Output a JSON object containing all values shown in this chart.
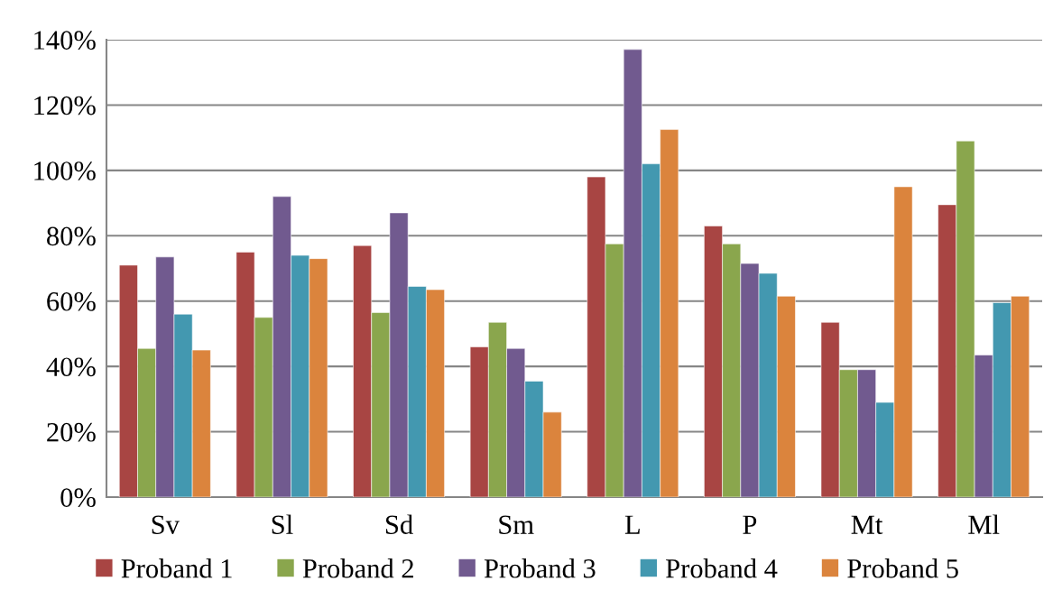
{
  "chart_data": {
    "type": "bar",
    "categories": [
      "Sv",
      "Sl",
      "Sd",
      "Sm",
      "L",
      "P",
      "Mt",
      "Ml"
    ],
    "series": [
      {
        "name": "Proband 1",
        "color": "#a84543",
        "values": [
          71,
          75,
          77,
          46,
          98,
          83,
          53.5,
          89.5
        ]
      },
      {
        "name": "Proband 2",
        "color": "#8aa64d",
        "values": [
          45.5,
          55,
          56.5,
          53.5,
          77.5,
          77.5,
          39,
          109
        ]
      },
      {
        "name": "Proband 3",
        "color": "#715a8f",
        "values": [
          73.5,
          92,
          87,
          45.5,
          137,
          71.5,
          39,
          43.5
        ]
      },
      {
        "name": "Proband 4",
        "color": "#4398b0",
        "values": [
          56,
          74,
          64.5,
          35.5,
          102,
          68.5,
          29,
          59.5
        ]
      },
      {
        "name": "Proband 5",
        "color": "#db843d",
        "values": [
          45,
          73,
          63.5,
          26,
          112.5,
          61.5,
          95,
          61.5
        ]
      }
    ],
    "ylim": [
      0,
      140
    ],
    "yticks": [
      {
        "value": 0,
        "label": "0%"
      },
      {
        "value": 20,
        "label": "20%"
      },
      {
        "value": 40,
        "label": "40%"
      },
      {
        "value": 60,
        "label": "60%"
      },
      {
        "value": 80,
        "label": "80%"
      },
      {
        "value": 100,
        "label": "100%"
      },
      {
        "value": 120,
        "label": "120%"
      },
      {
        "value": 140,
        "label": "140%"
      }
    ],
    "grid": "y",
    "legend": "bottom"
  }
}
